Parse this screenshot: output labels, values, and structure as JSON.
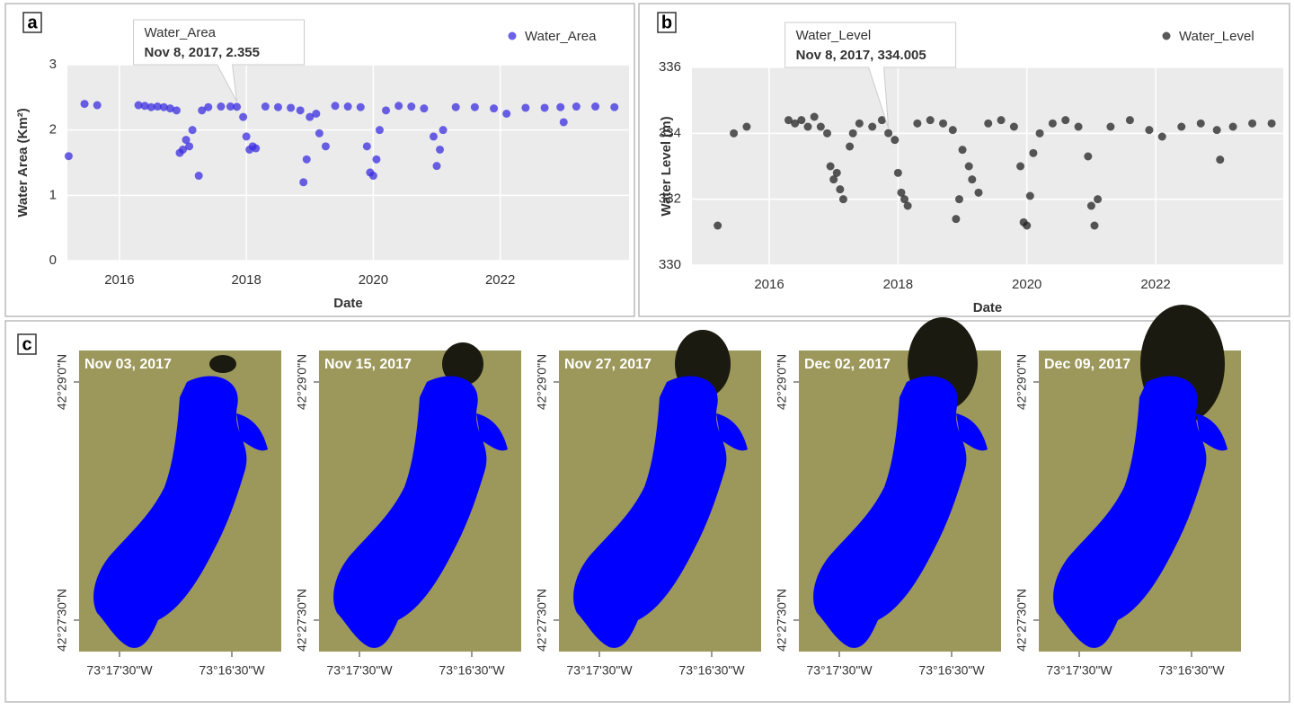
{
  "chart_data": [
    {
      "type": "scatter",
      "panel_label": "a",
      "x_label": "Date",
      "y_label": "Water Area (Km²)",
      "xlim": [
        2015.18,
        2024.03
      ],
      "xticks": [
        2016,
        2018,
        2020,
        2022
      ],
      "ylim": [
        0,
        3
      ],
      "yticks": [
        0,
        1,
        2,
        3
      ],
      "grid": true,
      "legend": "top-right",
      "series": [
        {
          "name": "Water_Area",
          "color": "#3a2ee0",
          "x": [
            2015.2,
            2015.45,
            2015.65,
            2016.3,
            2016.4,
            2016.5,
            2016.6,
            2016.7,
            2016.8,
            2016.9,
            2016.95,
            2017.0,
            2017.05,
            2017.1,
            2017.15,
            2017.25,
            2017.3,
            2017.4,
            2017.6,
            2017.75,
            2017.85,
            2017.95,
            2018.0,
            2018.05,
            2018.1,
            2018.15,
            2018.3,
            2018.5,
            2018.7,
            2018.85,
            2018.9,
            2018.95,
            2019.0,
            2019.1,
            2019.15,
            2019.25,
            2019.4,
            2019.6,
            2019.8,
            2019.9,
            2019.95,
            2020.0,
            2020.05,
            2020.1,
            2020.2,
            2020.4,
            2020.6,
            2020.8,
            2020.95,
            2021.0,
            2021.05,
            2021.1,
            2021.3,
            2021.6,
            2021.9,
            2022.1,
            2022.4,
            2022.7,
            2022.95,
            2023.0,
            2023.2,
            2023.5,
            2023.8
          ],
          "values": [
            1.6,
            2.4,
            2.38,
            2.38,
            2.37,
            2.35,
            2.36,
            2.35,
            2.33,
            2.3,
            1.65,
            1.7,
            1.85,
            1.75,
            2.0,
            1.3,
            2.3,
            2.35,
            2.36,
            2.36,
            2.355,
            2.2,
            1.9,
            1.7,
            1.75,
            1.72,
            2.36,
            2.35,
            2.34,
            2.3,
            1.2,
            1.55,
            2.2,
            2.25,
            1.95,
            1.75,
            2.37,
            2.36,
            2.35,
            1.75,
            1.35,
            1.3,
            1.55,
            2.0,
            2.3,
            2.37,
            2.36,
            2.33,
            1.9,
            1.45,
            1.7,
            2.0,
            2.35,
            2.35,
            2.33,
            2.25,
            2.34,
            2.34,
            2.35,
            2.12,
            2.36,
            2.36,
            2.35
          ]
        }
      ],
      "annotation": {
        "title": "Water_Area",
        "text": "Nov 8, 2017, 2.355",
        "x": 2017.85,
        "y": 2.355
      }
    },
    {
      "type": "scatter",
      "panel_label": "b",
      "x_label": "Date",
      "y_label": "Water Level (m)",
      "xlim": [
        2014.8,
        2023.98
      ],
      "xticks": [
        2016,
        2018,
        2020,
        2022
      ],
      "ylim": [
        330,
        336
      ],
      "yticks": [
        330,
        332,
        334,
        336
      ],
      "grid": true,
      "legend": "top-right",
      "series": [
        {
          "name": "Water_Level",
          "color": "#222222",
          "x": [
            2015.2,
            2015.45,
            2015.65,
            2016.3,
            2016.4,
            2016.5,
            2016.6,
            2016.7,
            2016.8,
            2016.9,
            2016.95,
            2017.0,
            2017.05,
            2017.1,
            2017.15,
            2017.25,
            2017.3,
            2017.4,
            2017.6,
            2017.75,
            2017.85,
            2017.95,
            2018.0,
            2018.05,
            2018.1,
            2018.15,
            2018.3,
            2018.5,
            2018.7,
            2018.85,
            2018.9,
            2018.95,
            2019.0,
            2019.1,
            2019.15,
            2019.25,
            2019.4,
            2019.6,
            2019.8,
            2019.9,
            2019.95,
            2020.0,
            2020.05,
            2020.1,
            2020.2,
            2020.4,
            2020.6,
            2020.8,
            2020.95,
            2021.0,
            2021.05,
            2021.1,
            2021.3,
            2021.6,
            2021.9,
            2022.1,
            2022.4,
            2022.7,
            2022.95,
            2023.0,
            2023.2,
            2023.5,
            2023.8
          ],
          "values": [
            331.2,
            334.0,
            334.2,
            334.4,
            334.3,
            334.4,
            334.2,
            334.5,
            334.2,
            334.0,
            333.0,
            332.6,
            332.8,
            332.3,
            332.0,
            333.6,
            334.0,
            334.3,
            334.2,
            334.4,
            334.005,
            333.8,
            332.8,
            332.2,
            332.0,
            331.8,
            334.3,
            334.4,
            334.3,
            334.1,
            331.4,
            332.0,
            333.5,
            333.0,
            332.6,
            332.2,
            334.3,
            334.4,
            334.2,
            333.0,
            331.3,
            331.2,
            332.1,
            333.4,
            334.0,
            334.3,
            334.4,
            334.2,
            333.3,
            331.8,
            331.2,
            332.0,
            334.2,
            334.4,
            334.1,
            333.9,
            334.2,
            334.3,
            334.1,
            333.2,
            334.2,
            334.3,
            334.3
          ]
        }
      ],
      "annotation": {
        "title": "Water_Level",
        "text": "Nov 8, 2017, 334.005",
        "x": 2017.85,
        "y": 334.005
      }
    }
  ],
  "panel_c": {
    "panel_label": "c",
    "dates": [
      "Nov 03, 2017",
      "Nov 15, 2017",
      "Nov 27, 2017",
      "Dec 02, 2017",
      "Dec 09, 2017"
    ],
    "lat_labels": [
      "42°29'0\"N",
      "42°27'30\"N"
    ],
    "lon_labels": [
      "73°17'30\"W",
      "73°16'30\"W"
    ]
  }
}
